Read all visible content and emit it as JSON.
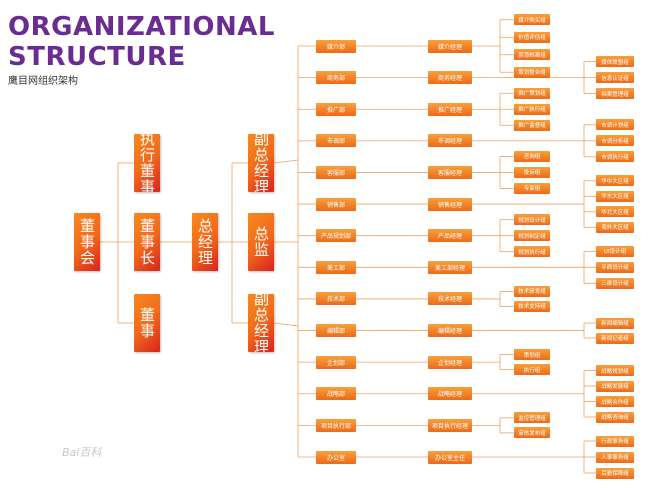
{
  "header": {
    "title_line1": "ORGANIZATIONAL",
    "title_line2": "STRUCTURE",
    "subtitle": "鹰目网组织架构"
  },
  "colors": {
    "title": "#6b2c91",
    "box_start": "#f58a1f",
    "box_end": "#d8241e",
    "line": "#f0a060"
  },
  "top": {
    "board": "董事会",
    "exec_director": "执行董事",
    "chairman": "董事长",
    "director": "董事",
    "general_manager": "总经理",
    "vice_gm_1": "副总经理",
    "general_supervisor": "总监",
    "vice_gm_2": "副总经理"
  },
  "departments": [
    {
      "dept": "媒介部",
      "manager": "媒介经理",
      "groups": [
        "媒介购买组",
        "价值评估组",
        "资源档案组",
        "策划整合组"
      ]
    },
    {
      "dept": "商务部",
      "manager": "商务经理",
      "groups": []
    },
    {
      "dept": "推广部",
      "manager": "推广经理",
      "groups": [
        "推广策划组",
        "推广执行组",
        "推广监督组"
      ]
    },
    {
      "dept": "市调部",
      "manager": "市调经理",
      "groups": []
    },
    {
      "dept": "客服部",
      "manager": "客服经理",
      "groups": [
        "咨询组",
        "投诉组",
        "专家组"
      ]
    },
    {
      "dept": "销售部",
      "manager": "销售经理",
      "groups": []
    },
    {
      "dept": "产品规划部",
      "manager": "产品经理",
      "groups": [
        "规划设计组",
        "规划制定组",
        "规划执行组"
      ]
    },
    {
      "dept": "美工部",
      "manager": "美工部经理",
      "groups": []
    },
    {
      "dept": "技术部",
      "manager": "技术经理",
      "groups": [
        "技术研发组",
        "技术支持组"
      ]
    },
    {
      "dept": "编辑部",
      "manager": "编辑经理",
      "groups": []
    },
    {
      "dept": "企划部",
      "manager": "企划经理",
      "groups": [
        "策划组",
        "执行组"
      ]
    },
    {
      "dept": "战略部",
      "manager": "战略经理",
      "groups": []
    },
    {
      "dept": "项目执行部",
      "manager": "项目执行经理",
      "groups": [
        "监控管理组",
        "审核发布组"
      ]
    },
    {
      "dept": "办公室",
      "manager": "办公室主任",
      "groups": []
    }
  ],
  "far_groups": [
    [
      "媒体联盟组",
      "信息认证组",
      "档案管理组"
    ],
    [
      "市调计划组",
      "市调分析组",
      "市调执行组"
    ],
    [
      "华中大区组",
      "华东大区组",
      "华北大区组",
      "海外大区组"
    ],
    [
      "UI设计组",
      "平面设计组",
      "三维设计组"
    ],
    [
      "新闻编辑组",
      "新闻记者组"
    ],
    [
      "战略规划组",
      "战略发展组",
      "战略合作组",
      "战略咨询组"
    ],
    [
      "行政事务组",
      "人事事务组",
      "后勤保障组"
    ]
  ],
  "watermark": "Bai百科"
}
